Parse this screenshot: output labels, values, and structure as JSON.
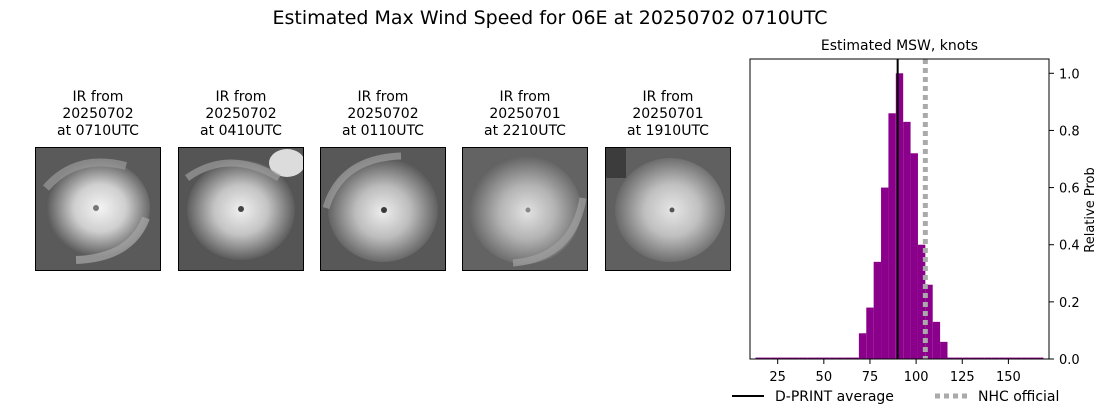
{
  "suptitle": "Estimated Max Wind Speed for 06E at 20250702 0710UTC",
  "panels": [
    {
      "line1": "IR from",
      "line2": "20250702",
      "line3": "at 0710UTC"
    },
    {
      "line1": "IR from",
      "line2": "20250702",
      "line3": "at 0410UTC"
    },
    {
      "line1": "IR from",
      "line2": "20250702",
      "line3": "at 0110UTC"
    },
    {
      "line1": "IR from",
      "line2": "20250701",
      "line3": "at 2210UTC"
    },
    {
      "line1": "IR from",
      "line2": "20250701",
      "line3": "at 1910UTC"
    }
  ],
  "chart_data": {
    "type": "bar",
    "title": "Estimated MSW, knots",
    "xlabel": "",
    "ylabel": "Relative Prob",
    "xlim": [
      10,
      172
    ],
    "ylim": [
      0,
      1.05
    ],
    "xticks": [
      25,
      50,
      75,
      100,
      125,
      150
    ],
    "yticks": [
      0.0,
      0.2,
      0.4,
      0.6,
      0.8,
      1.0
    ],
    "ytick_labels": [
      "0.0",
      "0.2",
      "0.4",
      "0.6",
      "0.8",
      "1.0"
    ],
    "bar_color": "#8b008b",
    "bin_width": 4,
    "bins": [
      {
        "x": 15,
        "value": 0.005
      },
      {
        "x": 19,
        "value": 0.005
      },
      {
        "x": 23,
        "value": 0.005
      },
      {
        "x": 27,
        "value": 0.005
      },
      {
        "x": 31,
        "value": 0.005
      },
      {
        "x": 35,
        "value": 0.005
      },
      {
        "x": 39,
        "value": 0.005
      },
      {
        "x": 43,
        "value": 0.005
      },
      {
        "x": 47,
        "value": 0.005
      },
      {
        "x": 51,
        "value": 0.005
      },
      {
        "x": 55,
        "value": 0.005
      },
      {
        "x": 59,
        "value": 0.005
      },
      {
        "x": 63,
        "value": 0.005
      },
      {
        "x": 67,
        "value": 0.005
      },
      {
        "x": 71,
        "value": 0.09
      },
      {
        "x": 75,
        "value": 0.18
      },
      {
        "x": 79,
        "value": 0.34
      },
      {
        "x": 83,
        "value": 0.6
      },
      {
        "x": 87,
        "value": 0.86
      },
      {
        "x": 91,
        "value": 1.0
      },
      {
        "x": 95,
        "value": 0.83
      },
      {
        "x": 99,
        "value": 0.72
      },
      {
        "x": 103,
        "value": 0.4
      },
      {
        "x": 107,
        "value": 0.26
      },
      {
        "x": 111,
        "value": 0.13
      },
      {
        "x": 115,
        "value": 0.06
      },
      {
        "x": 119,
        "value": 0.005
      },
      {
        "x": 123,
        "value": 0.005
      },
      {
        "x": 127,
        "value": 0.005
      },
      {
        "x": 131,
        "value": 0.005
      },
      {
        "x": 135,
        "value": 0.005
      },
      {
        "x": 139,
        "value": 0.005
      },
      {
        "x": 143,
        "value": 0.005
      },
      {
        "x": 147,
        "value": 0.005
      },
      {
        "x": 151,
        "value": 0.005
      },
      {
        "x": 155,
        "value": 0.005
      },
      {
        "x": 159,
        "value": 0.005
      },
      {
        "x": 163,
        "value": 0.005
      },
      {
        "x": 167,
        "value": 0.005
      }
    ],
    "lines": [
      {
        "name": "D-PRINT average",
        "x": 90,
        "color": "#000000",
        "style": "solid"
      },
      {
        "name": "NHC official",
        "x": 105,
        "color": "#aaaaaa",
        "style": "dotted"
      }
    ],
    "legend_position": "bottom"
  }
}
